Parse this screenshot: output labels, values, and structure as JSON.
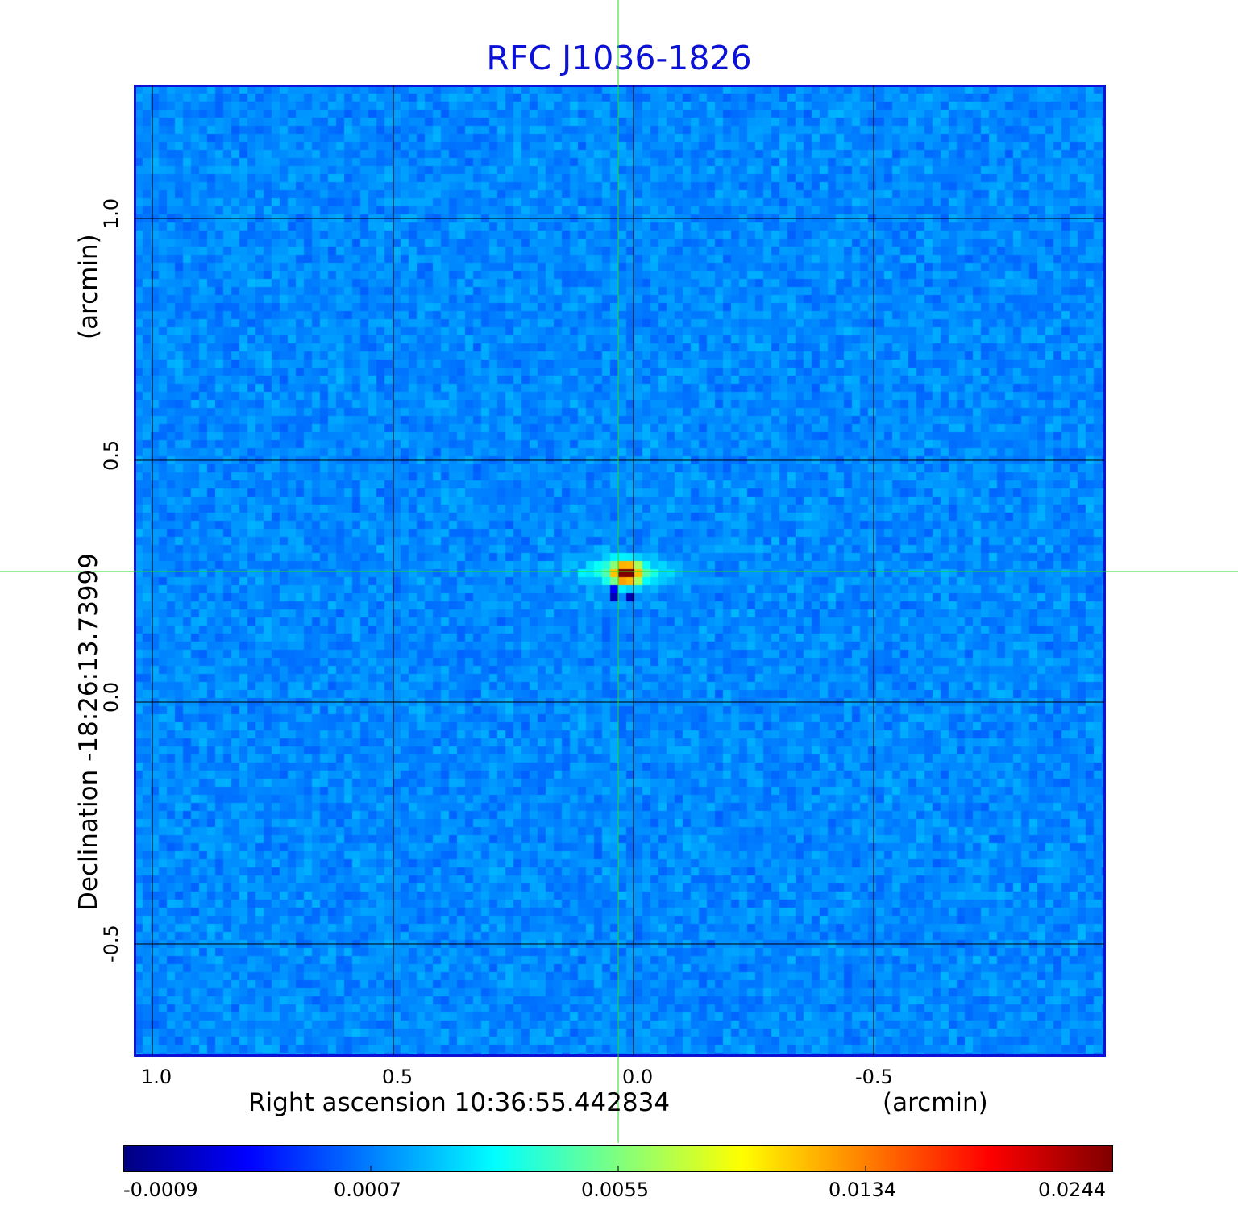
{
  "title": "RFC J1036-1826",
  "x_axis": {
    "label": "Right ascension  10:36:55.442834",
    "unit_label": "(arcmin)",
    "ticks": [
      "1.0",
      "0.5",
      "0.0",
      "-0.5"
    ]
  },
  "y_axis": {
    "label": "Declination  -18:26:13.73999",
    "unit_label": "(arcmin)",
    "ticks": [
      "1.0",
      "0.5",
      "0.0",
      "-0.5"
    ]
  },
  "colorbar": {
    "ticks": [
      "-0.0009",
      "0.0007",
      "0.0055",
      "0.0134",
      "0.0244"
    ],
    "colormap": "jet"
  },
  "colors": {
    "title": "#0b12d6",
    "frame": "#0b12d6",
    "crosshair": "#22dd22",
    "grid": "#000000",
    "background_pixel": "#1d5cf0"
  },
  "source": {
    "description_marks": [
      "peak"
    ]
  }
}
